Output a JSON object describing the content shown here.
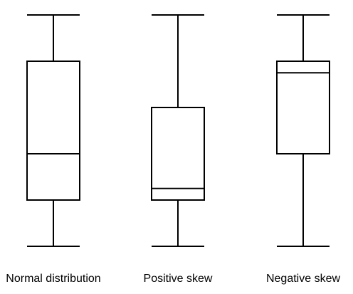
{
  "diagram": {
    "line_color": "#000000",
    "background_color": "#ffffff",
    "boxplots": [
      {
        "label": "Normal distribution",
        "min": 0.0,
        "q1": 0.2,
        "median": 0.4,
        "q3": 0.8,
        "max": 1.0,
        "skew": "none"
      },
      {
        "label": "Positive skew",
        "min": 0.0,
        "q1": 0.2,
        "median": 0.25,
        "q3": 0.6,
        "max": 1.0,
        "skew": "positive"
      },
      {
        "label": "Negative skew",
        "min": 0.0,
        "q1": 0.4,
        "median": 0.75,
        "q3": 0.8,
        "max": 1.0,
        "skew": "negative"
      }
    ]
  }
}
